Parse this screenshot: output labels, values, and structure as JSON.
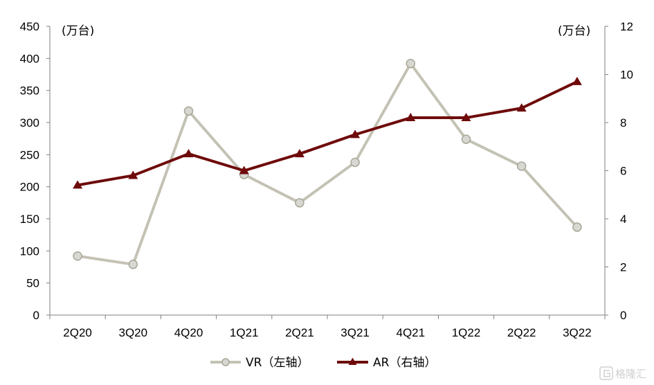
{
  "chart_data": {
    "type": "line",
    "categories": [
      "2Q20",
      "3Q20",
      "4Q20",
      "1Q21",
      "2Q21",
      "3Q21",
      "4Q21",
      "1Q22",
      "2Q22",
      "3Q22"
    ],
    "left_axis": {
      "unit_label": "(万台)",
      "ylim": [
        0,
        450
      ],
      "ticks": [
        "0",
        "50",
        "100",
        "150",
        "200",
        "250",
        "300",
        "350",
        "400",
        "450"
      ]
    },
    "right_axis": {
      "unit_label": "(万台)",
      "ylim": [
        0,
        12
      ],
      "ticks": [
        "0",
        "2",
        "4",
        "6",
        "8",
        "10",
        "12"
      ]
    },
    "series": [
      {
        "name": "VR（左轴）",
        "axis": "left",
        "color": "#c4c2b4",
        "marker": "circle",
        "values": [
          92,
          79,
          318,
          219,
          175,
          238,
          392,
          274,
          232,
          137
        ]
      },
      {
        "name": "AR（右轴）",
        "axis": "right",
        "color": "#6e0a0a",
        "marker": "triangle",
        "values": [
          5.4,
          5.8,
          6.7,
          6.0,
          6.7,
          7.5,
          8.2,
          8.2,
          8.6,
          9.7
        ]
      }
    ],
    "grid": false,
    "legend_position": "bottom-center"
  },
  "watermark": {
    "text": "格隆汇",
    "icon": "gelonghui-logo-icon"
  }
}
